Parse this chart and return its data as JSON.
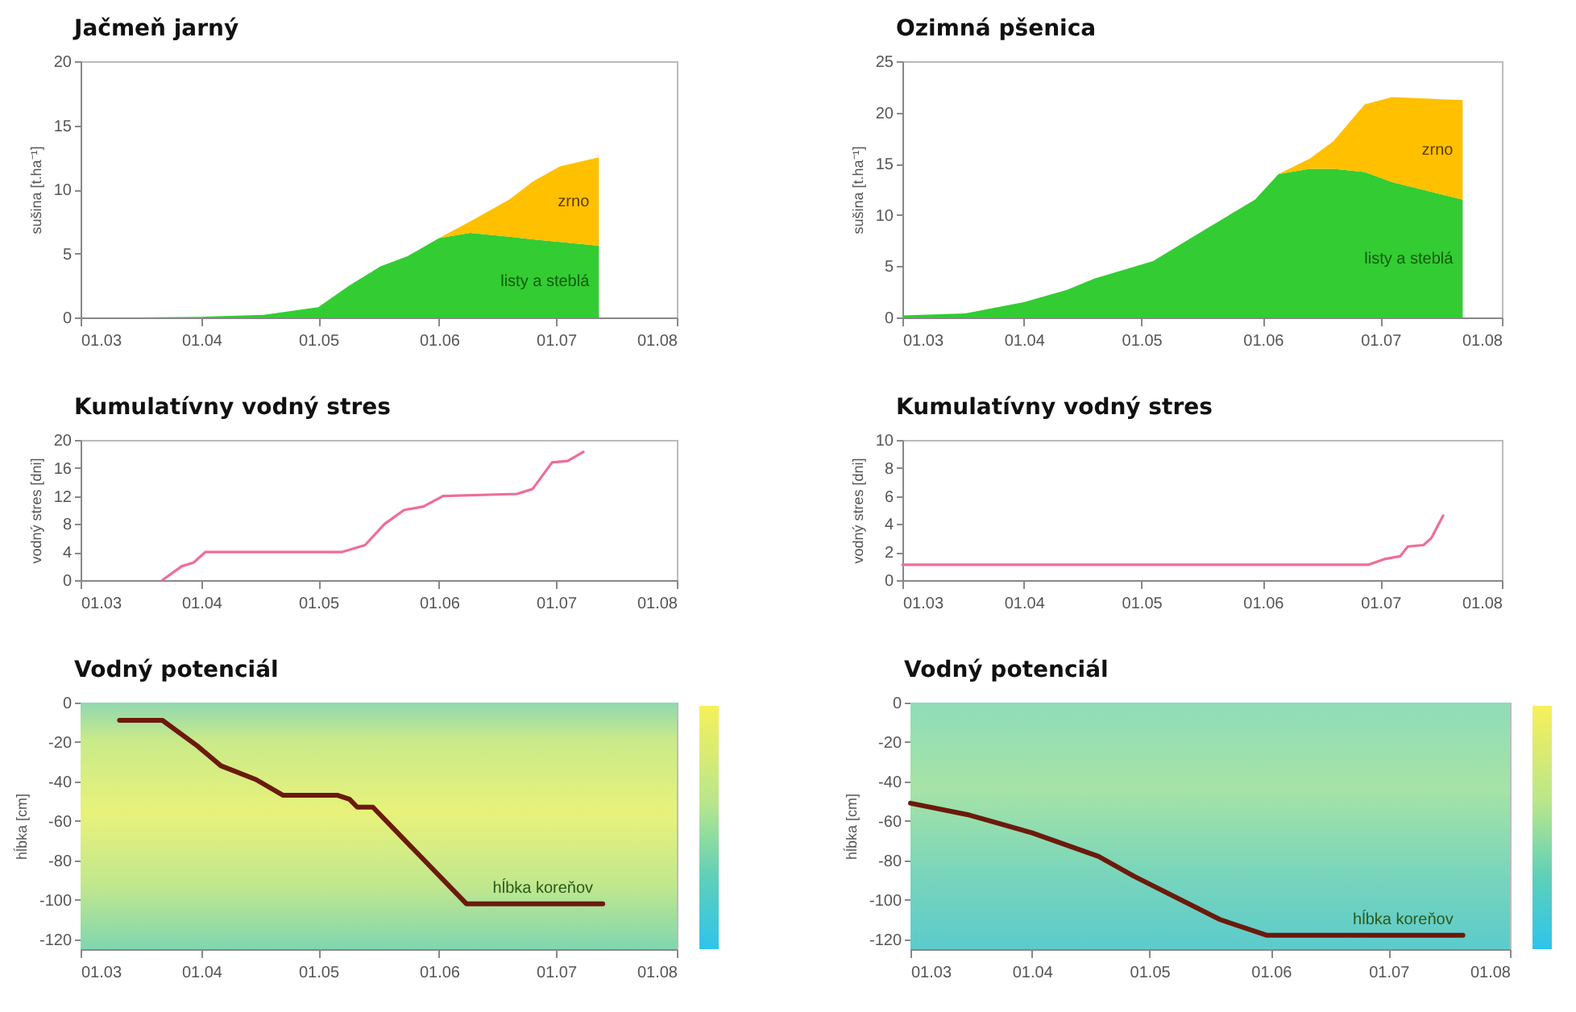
{
  "chart_data": [
    {
      "type": "area",
      "title": "Jačmeň jarný",
      "ylabel": "sušina [t.ha⁻¹]",
      "stacked": true,
      "x": [
        "--03-16",
        "--04-01",
        "--04-17",
        "--05-01",
        "--05-09",
        "--05-17",
        "--05-24",
        "--06-01",
        "--06-09",
        "--06-19",
        "--06-25",
        "--07-02",
        "--07-12"
      ],
      "series": [
        {
          "name": "listy a steblá",
          "color": "#33cc33",
          "values": [
            0,
            0.05,
            0.2,
            0.8,
            2.5,
            4,
            4.8,
            6.2,
            6.6,
            6.3,
            6.1,
            5.9,
            5.6
          ]
        },
        {
          "name": "zrno",
          "color": "#ffc000",
          "values": [
            0,
            0,
            0,
            0,
            0,
            0,
            0,
            0,
            0.9,
            2.9,
            4.5,
            5.9,
            6.9
          ]
        }
      ],
      "xlim": [
        "--03-01",
        "--08-01"
      ],
      "xticks": [
        {
          "value": "--03-01",
          "label": "01.03"
        },
        {
          "value": "--04-01",
          "label": "01.04"
        },
        {
          "value": "--05-01",
          "label": "01.05"
        },
        {
          "value": "--06-01",
          "label": "01.06"
        },
        {
          "value": "--07-01",
          "label": "01.07"
        },
        {
          "value": "--08-01",
          "label": "01.08"
        }
      ],
      "ylim": [
        0,
        20
      ],
      "yticks": [
        0,
        5,
        10,
        15,
        20
      ]
    },
    {
      "type": "area",
      "title": "Ozimná pšenica",
      "ylabel": "sušina [t.ha⁻¹]",
      "stacked": true,
      "x": [
        "--03-01",
        "--03-17",
        "--04-01",
        "--04-12",
        "--04-19",
        "--05-04",
        "--05-16",
        "--05-30",
        "--06-05",
        "--06-13",
        "--06-19",
        "--06-27",
        "--07-04",
        "--07-22"
      ],
      "series": [
        {
          "name": "listy a steblá",
          "color": "#33cc33",
          "values": [
            0.2,
            0.4,
            1.5,
            2.7,
            3.8,
            5.5,
            8.3,
            11.5,
            14,
            14.5,
            14.5,
            14.2,
            13.2,
            11.5
          ]
        },
        {
          "name": "zrno",
          "color": "#ffc000",
          "values": [
            0,
            0,
            0,
            0,
            0,
            0,
            0,
            0,
            0,
            1,
            2.7,
            6.6,
            8.3,
            9.7
          ]
        }
      ],
      "xlim": [
        "--03-01",
        "--08-01"
      ],
      "xticks": [
        {
          "value": "--03-01",
          "label": "01.03"
        },
        {
          "value": "--04-01",
          "label": "01.04"
        },
        {
          "value": "--05-01",
          "label": "01.05"
        },
        {
          "value": "--06-01",
          "label": "01.06"
        },
        {
          "value": "--07-01",
          "label": "01.07"
        },
        {
          "value": "--08-01",
          "label": "01.08"
        }
      ],
      "ylim": [
        0,
        25
      ],
      "yticks": [
        0,
        5,
        10,
        15,
        20,
        25
      ]
    },
    {
      "type": "line",
      "title": "Kumulatívny vodný stres",
      "ylabel": "vodný stres [dni]",
      "x": [
        "--03-22",
        "--03-27",
        "--03-30",
        "--04-02",
        "--05-07",
        "--05-13",
        "--05-18",
        "--05-23",
        "--05-28",
        "--06-02",
        "--06-21",
        "--06-25",
        "--06-30",
        "--07-04",
        "--07-08"
      ],
      "series": [
        {
          "color": "#f06c9b",
          "values": [
            0,
            2,
            2.5,
            4,
            4,
            5,
            8,
            10,
            10.5,
            12,
            12.3,
            13,
            16.8,
            17,
            18.3
          ]
        }
      ],
      "xlim": [
        "--03-01",
        "--08-01"
      ],
      "xticks": [
        {
          "value": "--03-01",
          "label": "01.03"
        },
        {
          "value": "--04-01",
          "label": "01.04"
        },
        {
          "value": "--05-01",
          "label": "01.05"
        },
        {
          "value": "--06-01",
          "label": "01.06"
        },
        {
          "value": "--07-01",
          "label": "01.07"
        },
        {
          "value": "--08-01",
          "label": "01.08"
        }
      ],
      "ylim": [
        0,
        20
      ],
      "yticks": [
        0,
        4,
        8,
        12,
        16,
        20
      ]
    },
    {
      "type": "line",
      "title": "Kumulatívny vodný stres",
      "ylabel": "vodný stres [dni]",
      "x": [
        "--03-01",
        "--06-28",
        "--07-02",
        "--07-06",
        "--07-08",
        "--07-12",
        "--07-14",
        "--07-17"
      ],
      "series": [
        {
          "color": "#f06c9b",
          "values": [
            1.1,
            1.1,
            1.5,
            1.7,
            2.4,
            2.5,
            3,
            4.6
          ]
        }
      ],
      "xlim": [
        "--03-01",
        "--08-01"
      ],
      "xticks": [
        {
          "value": "--03-01",
          "label": "01.03"
        },
        {
          "value": "--04-01",
          "label": "01.04"
        },
        {
          "value": "--05-01",
          "label": "01.05"
        },
        {
          "value": "--06-01",
          "label": "01.06"
        },
        {
          "value": "--07-01",
          "label": "01.07"
        },
        {
          "value": "--08-01",
          "label": "01.08"
        }
      ],
      "ylim": [
        0,
        10
      ],
      "yticks": [
        0,
        2,
        4,
        6,
        8,
        10
      ]
    },
    {
      "type": "line",
      "title": "Vodný potenciál",
      "ylabel": "hĺbka [cm]",
      "x": [
        "--03-11",
        "--03-22",
        "--03-31",
        "--04-06",
        "--04-15",
        "--04-22",
        "--05-06",
        "--05-09",
        "--05-11",
        "--05-15",
        "--06-08",
        "--07-13"
      ],
      "series": [
        {
          "name": "hĺbka koreňov",
          "color": "#6b1a0c",
          "values": [
            -9,
            -9,
            -22,
            -32,
            -39,
            -47,
            -47,
            -49,
            -53,
            -53,
            -102,
            -102
          ]
        }
      ],
      "xlim": [
        "--03-01",
        "--08-01"
      ],
      "xticks": [
        {
          "value": "--03-01",
          "label": "01.03"
        },
        {
          "value": "--04-01",
          "label": "01.04"
        },
        {
          "value": "--05-01",
          "label": "01.05"
        },
        {
          "value": "--06-01",
          "label": "01.06"
        },
        {
          "value": "--07-01",
          "label": "01.07"
        },
        {
          "value": "--08-01",
          "label": "01.08"
        }
      ],
      "ylim": [
        -125,
        0
      ],
      "yticks": [
        0,
        -20,
        -40,
        -60,
        -80,
        -100,
        -120
      ]
    },
    {
      "type": "line",
      "title": "Vodný potenciál",
      "ylabel": "hĺbka [cm]",
      "x": [
        "--03-01",
        "--03-16",
        "--04-01",
        "--04-18",
        "--04-27",
        "--05-19",
        "--05-31",
        "--07-20"
      ],
      "series": [
        {
          "name": "hĺbka koreňov",
          "color": "#6b1a0c",
          "values": [
            -51,
            -57,
            -66,
            -78,
            -88,
            -110,
            -118,
            -118
          ]
        }
      ],
      "xlim": [
        "--03-01",
        "--08-01"
      ],
      "xticks": [
        {
          "value": "--03-01",
          "label": "01.03"
        },
        {
          "value": "--04-01",
          "label": "01.04"
        },
        {
          "value": "--05-01",
          "label": "01.05"
        },
        {
          "value": "--06-01",
          "label": "01.06"
        },
        {
          "value": "--07-01",
          "label": "01.07"
        },
        {
          "value": "--08-01",
          "label": "01.08"
        }
      ],
      "ylim": [
        -125,
        0
      ],
      "yticks": [
        0,
        -20,
        -40,
        -60,
        -80,
        -100,
        -120
      ]
    }
  ]
}
